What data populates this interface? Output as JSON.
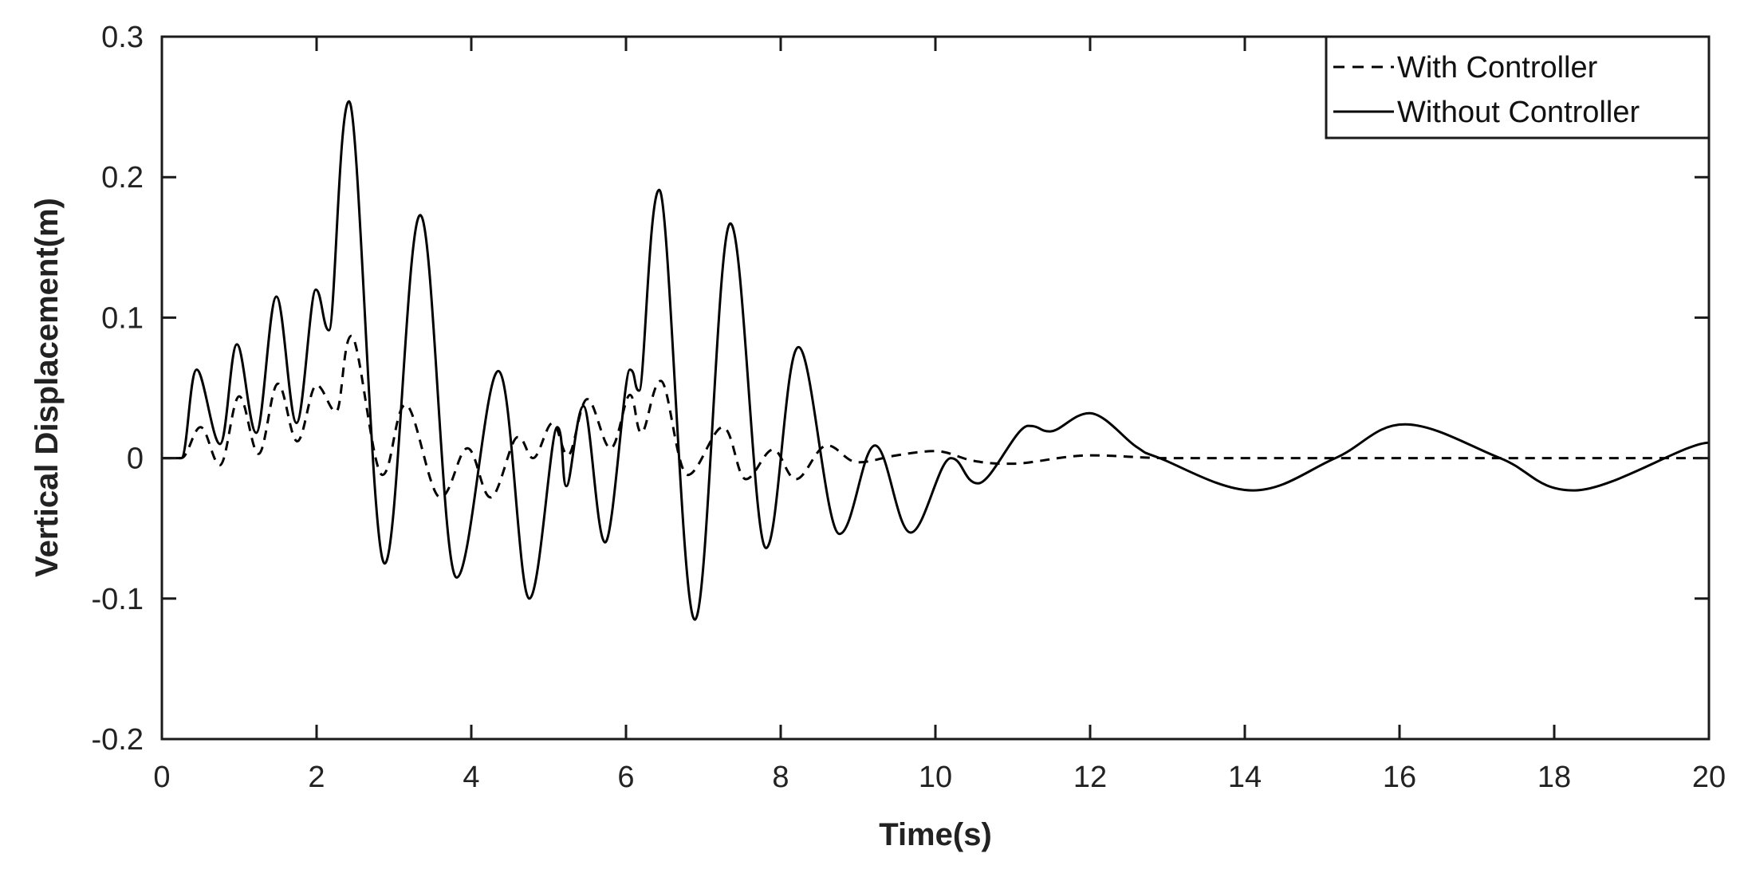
{
  "chart_data": {
    "type": "line",
    "title": "",
    "xlabel": "Time(s)",
    "ylabel": "Vertical Displacement(m)",
    "xlim": [
      0,
      20
    ],
    "ylim": [
      -0.2,
      0.3
    ],
    "xticks": [
      0,
      2,
      4,
      6,
      8,
      10,
      12,
      14,
      16,
      18,
      20
    ],
    "yticks": [
      -0.2,
      -0.1,
      0,
      0.1,
      0.2,
      0.3
    ],
    "ytick_labels": [
      "-0.2",
      "-0.1",
      "0",
      "0.1",
      "0.2",
      "0.3"
    ],
    "grid": false,
    "legend_position": "upper right",
    "series": [
      {
        "name": "With Controller",
        "style": "dashed",
        "color": "#000000",
        "x": [
          0,
          0.25,
          0.5,
          0.75,
          1.0,
          1.25,
          1.5,
          1.75,
          2.0,
          2.25,
          2.45,
          2.85,
          3.15,
          3.6,
          3.95,
          4.25,
          4.6,
          4.8,
          5.05,
          5.25,
          5.5,
          5.8,
          6.05,
          6.2,
          6.45,
          6.8,
          7.25,
          7.55,
          7.9,
          8.2,
          8.6,
          9.0,
          9.5,
          10.0,
          10.5,
          11.0,
          12.0,
          13.0,
          14.0,
          16.0,
          18.0,
          20.0
        ],
        "y": [
          0,
          0,
          0.022,
          -0.005,
          0.044,
          0.003,
          0.053,
          0.012,
          0.052,
          0.033,
          0.087,
          -0.012,
          0.038,
          -0.028,
          0.007,
          -0.028,
          0.015,
          0.0,
          0.025,
          0.002,
          0.042,
          0.007,
          0.045,
          0.018,
          0.055,
          -0.012,
          0.022,
          -0.015,
          0.006,
          -0.015,
          0.009,
          -0.003,
          0.002,
          0.005,
          -0.002,
          -0.004,
          0.002,
          0.0,
          0.0,
          0.0,
          0.0,
          0.0
        ]
      },
      {
        "name": "Without Controller",
        "style": "solid",
        "color": "#000000",
        "x": [
          0,
          0.25,
          0.45,
          0.75,
          0.97,
          1.22,
          1.48,
          1.74,
          1.99,
          2.16,
          2.42,
          2.88,
          3.34,
          3.81,
          4.35,
          4.75,
          5.11,
          5.23,
          5.45,
          5.73,
          6.05,
          6.17,
          6.43,
          6.89,
          7.35,
          7.81,
          8.23,
          8.76,
          9.22,
          9.68,
          10.2,
          10.55,
          11.2,
          11.48,
          11.99,
          12.6,
          12.9,
          14.1,
          15.17,
          16.07,
          17.3,
          18.26,
          20.0
        ],
        "y": [
          0,
          0,
          0.063,
          0.01,
          0.081,
          0.018,
          0.115,
          0.025,
          0.12,
          0.091,
          0.254,
          -0.075,
          0.173,
          -0.085,
          0.062,
          -0.1,
          0.022,
          -0.02,
          0.037,
          -0.06,
          0.063,
          0.048,
          0.191,
          -0.115,
          0.167,
          -0.064,
          0.079,
          -0.054,
          0.009,
          -0.053,
          0.0,
          -0.018,
          0.023,
          0.019,
          0.032,
          0.008,
          0.0,
          -0.023,
          0.0,
          0.024,
          0.0,
          -0.023,
          0.011
        ]
      }
    ]
  },
  "legend": {
    "items": [
      {
        "label": "With Controller",
        "style": "dashed"
      },
      {
        "label": "Without Controller",
        "style": "solid"
      }
    ]
  },
  "axes": {
    "xlabel": "Time(s)",
    "ylabel": "Vertical Displacement(m)"
  }
}
